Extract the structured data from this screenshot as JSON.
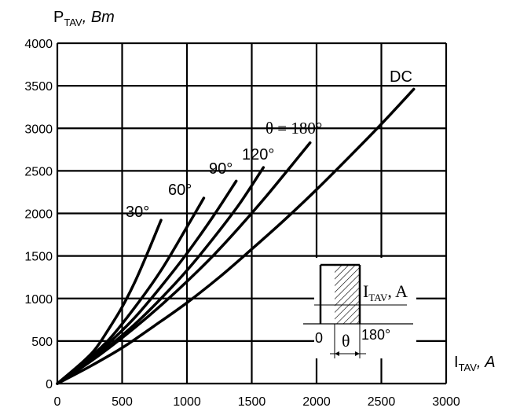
{
  "chart_data": {
    "type": "line",
    "title": "",
    "ylabel": {
      "main": "P",
      "sub": "TAV",
      "unit": ", Bm"
    },
    "xlabel": {
      "main": "I",
      "sub": "TAV",
      "unit": ", A"
    },
    "xlim": [
      0,
      3000
    ],
    "ylim": [
      0,
      4000
    ],
    "x_ticks": [
      0,
      500,
      1000,
      1500,
      2000,
      2500,
      3000
    ],
    "y_ticks": [
      0,
      500,
      1000,
      1500,
      2000,
      2500,
      3000,
      3500,
      4000
    ],
    "grid": true,
    "series": [
      {
        "name": "30°",
        "x": [
          0,
          200,
          300,
          400,
          500,
          600,
          700,
          800
        ],
        "y": [
          0,
          260,
          420,
          650,
          900,
          1200,
          1550,
          1920
        ]
      },
      {
        "name": "60°",
        "x": [
          0,
          200,
          400,
          600,
          800,
          1000,
          1130
        ],
        "y": [
          0,
          240,
          520,
          900,
          1330,
          1840,
          2180
        ]
      },
      {
        "name": "90°",
        "x": [
          0,
          200,
          400,
          600,
          800,
          1000,
          1200,
          1380
        ],
        "y": [
          0,
          220,
          480,
          780,
          1140,
          1530,
          1960,
          2380
        ]
      },
      {
        "name": "120°",
        "x": [
          0,
          200,
          400,
          600,
          800,
          1000,
          1200,
          1400,
          1590
        ],
        "y": [
          0,
          210,
          440,
          700,
          1000,
          1330,
          1700,
          2100,
          2540
        ]
      },
      {
        "name": "θ = 180°",
        "x": [
          0,
          200,
          400,
          600,
          800,
          1000,
          1200,
          1400,
          1600,
          1800,
          1950
        ],
        "y": [
          0,
          200,
          420,
          660,
          920,
          1200,
          1500,
          1830,
          2180,
          2550,
          2830
        ]
      },
      {
        "name": "DC",
        "x": [
          0,
          250,
          500,
          750,
          1000,
          1250,
          1500,
          1750,
          2000,
          2250,
          2500,
          2750
        ],
        "y": [
          0,
          200,
          420,
          680,
          950,
          1250,
          1580,
          1920,
          2280,
          2660,
          3050,
          3460
        ]
      }
    ],
    "inset": {
      "current_label": {
        "main": "I",
        "sub": "TAV",
        "unit": ", A"
      },
      "zero": "0",
      "theta": "θ",
      "angle": "180°"
    }
  }
}
